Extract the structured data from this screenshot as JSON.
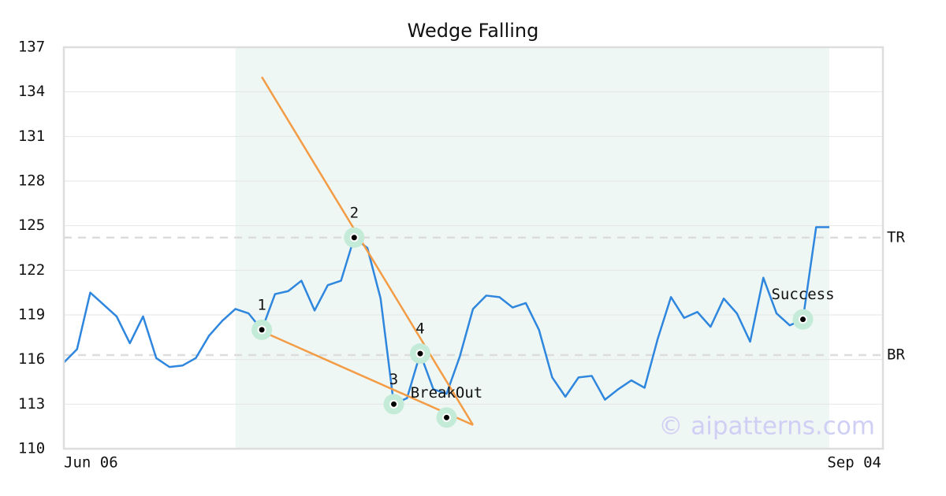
{
  "chart_data": {
    "type": "line",
    "title": "Wedge Falling",
    "categories": [
      "Jun 06",
      null,
      null,
      null,
      null,
      null,
      null,
      null,
      null,
      null,
      null,
      null,
      null,
      null,
      null,
      null,
      null,
      null,
      null,
      null,
      null,
      null,
      null,
      null,
      null,
      null,
      null,
      null,
      null,
      null,
      null,
      null,
      null,
      null,
      null,
      null,
      null,
      null,
      null,
      null,
      null,
      null,
      null,
      null,
      null,
      null,
      null,
      null,
      null,
      null,
      null,
      null,
      null,
      null,
      null,
      null,
      null,
      null,
      "Sep 04"
    ],
    "series": [
      {
        "color": "#2e86de",
        "values": [
          115.8,
          116.7,
          120.5,
          119.7,
          118.9,
          117.1,
          118.9,
          116.1,
          115.5,
          115.6,
          116.1,
          117.6,
          118.6,
          119.4,
          119.1,
          118.0,
          120.4,
          120.6,
          121.3,
          119.3,
          121.0,
          121.3,
          124.2,
          123.5,
          120.1,
          113.0,
          113.4,
          116.4,
          114.0,
          113.7,
          116.2,
          119.4,
          120.3,
          120.2,
          119.5,
          119.8,
          118.0,
          114.8,
          113.5,
          114.8,
          114.9,
          113.3,
          114.0,
          114.6,
          114.1,
          117.4,
          120.2,
          118.8,
          119.2,
          118.2,
          120.1,
          119.1,
          117.2,
          121.5,
          119.1,
          118.3,
          118.7,
          124.9,
          124.9
        ]
      }
    ],
    "ylim": [
      110,
      137
    ],
    "yticks": [
      110,
      113,
      116,
      119,
      122,
      125,
      128,
      131,
      134,
      137
    ],
    "grid": true,
    "shaded_range": [
      13,
      58
    ],
    "shade_color": "#eef7f3",
    "trendlines": [
      {
        "color": "#f39c45",
        "x": [
          15,
          31
        ],
        "values": [
          135.0,
          111.6
        ]
      },
      {
        "color": "#f39c45",
        "x": [
          15,
          31
        ],
        "values": [
          117.9,
          111.6
        ]
      }
    ],
    "reference_lines": [
      {
        "label": "TR",
        "value": 124.2
      },
      {
        "label": "BR",
        "value": 116.3
      }
    ],
    "markers": [
      {
        "label": "1",
        "x": 15,
        "value": 118.0
      },
      {
        "label": "2",
        "x": 22,
        "value": 124.2
      },
      {
        "label": "3",
        "x": 25,
        "value": 113.0
      },
      {
        "label": "4",
        "x": 27,
        "value": 116.4
      },
      {
        "label": "BreakOut",
        "x": 29,
        "value": 112.1
      },
      {
        "label": "Success",
        "x": 56,
        "value": 118.7
      }
    ],
    "watermark": "© aipatterns.com"
  }
}
